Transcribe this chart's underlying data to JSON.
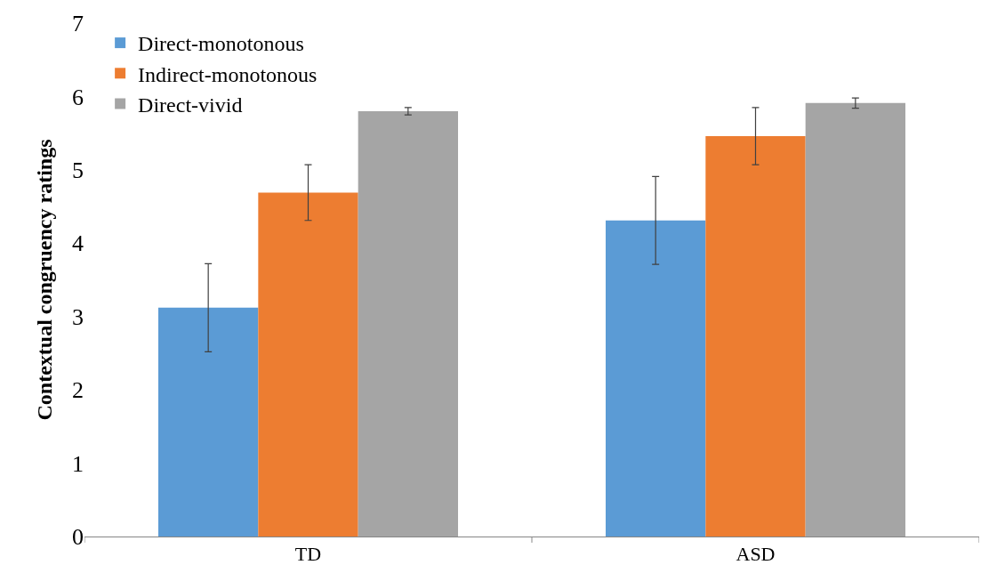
{
  "chart_data": {
    "type": "bar",
    "ylabel": "Contextual congruency ratings",
    "categories": [
      "TD",
      "ASD"
    ],
    "series": [
      {
        "name": "Direct-monotonous",
        "color": "#5b9bd5",
        "values": [
          3.12,
          4.31
        ],
        "errors": [
          0.6,
          0.6
        ]
      },
      {
        "name": "Indirect-monotonous",
        "color": "#ed7d31",
        "values": [
          4.69,
          5.46
        ],
        "errors": [
          0.38,
          0.39
        ]
      },
      {
        "name": "Direct-vivid",
        "color": "#a5a5a5",
        "values": [
          5.8,
          5.91
        ],
        "errors": [
          0.05,
          0.07
        ]
      }
    ],
    "ylim": [
      0,
      7
    ],
    "yticks": [
      0,
      1,
      2,
      3,
      4,
      5,
      6,
      7
    ],
    "grid": false,
    "legend": "top left"
  }
}
